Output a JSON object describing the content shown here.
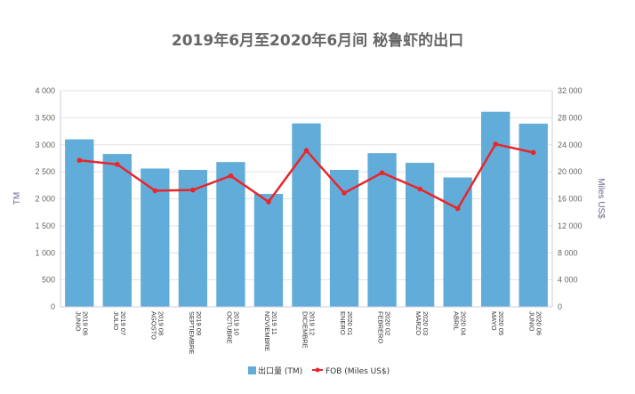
{
  "chart_data": {
    "type": "bar+line",
    "title": "2019年6月至2020年6月间 秘鲁虾的出口",
    "categories": [
      [
        "2019 06",
        "JUNIO"
      ],
      [
        "2019 07",
        "JULIO"
      ],
      [
        "2019 08",
        "AGOSTO"
      ],
      [
        "2019 09",
        "SEPTIEMBRE"
      ],
      [
        "2019 10",
        "OCTUBRE"
      ],
      [
        "2019 11",
        "NOVIEMBRE"
      ],
      [
        "2019 12",
        "DICIEMBRE"
      ],
      [
        "2020 01",
        "ENERO"
      ],
      [
        "2020 02",
        "FEBRERO"
      ],
      [
        "2020 03",
        "MARZO"
      ],
      [
        "2020 04",
        "ABRIL"
      ],
      [
        "2020 05",
        "MAYO"
      ],
      [
        "2020 06",
        "JUNIO"
      ]
    ],
    "series": [
      {
        "name": "出口量 (TM)",
        "type": "bar",
        "axis": "left",
        "color": "#62acd9",
        "values": [
          3100,
          2830,
          2560,
          2535,
          2680,
          2090,
          3395,
          2535,
          2845,
          2665,
          2395,
          3610,
          3390
        ]
      },
      {
        "name": "FOB (Miles US$)",
        "type": "line",
        "axis": "right",
        "color": "#e8262b",
        "values": [
          21700,
          21100,
          17200,
          17300,
          19400,
          15550,
          23150,
          16850,
          19850,
          17450,
          14550,
          24100,
          22850
        ]
      }
    ],
    "ylabel": "TM",
    "ylim": [
      0,
      4000
    ],
    "yticks": [
      "0",
      "500",
      "1 000",
      "1 500",
      "2 000",
      "2 500",
      "3 000",
      "3 500",
      "4 000"
    ],
    "y2label": "Miles US$",
    "y2lim": [
      0,
      32000
    ],
    "y2ticks": [
      "0",
      "4 000",
      "8 000",
      "12 000",
      "16 000",
      "20 000",
      "24 000",
      "28 000",
      "32 000"
    ],
    "grid": true,
    "legend": "bottom"
  }
}
